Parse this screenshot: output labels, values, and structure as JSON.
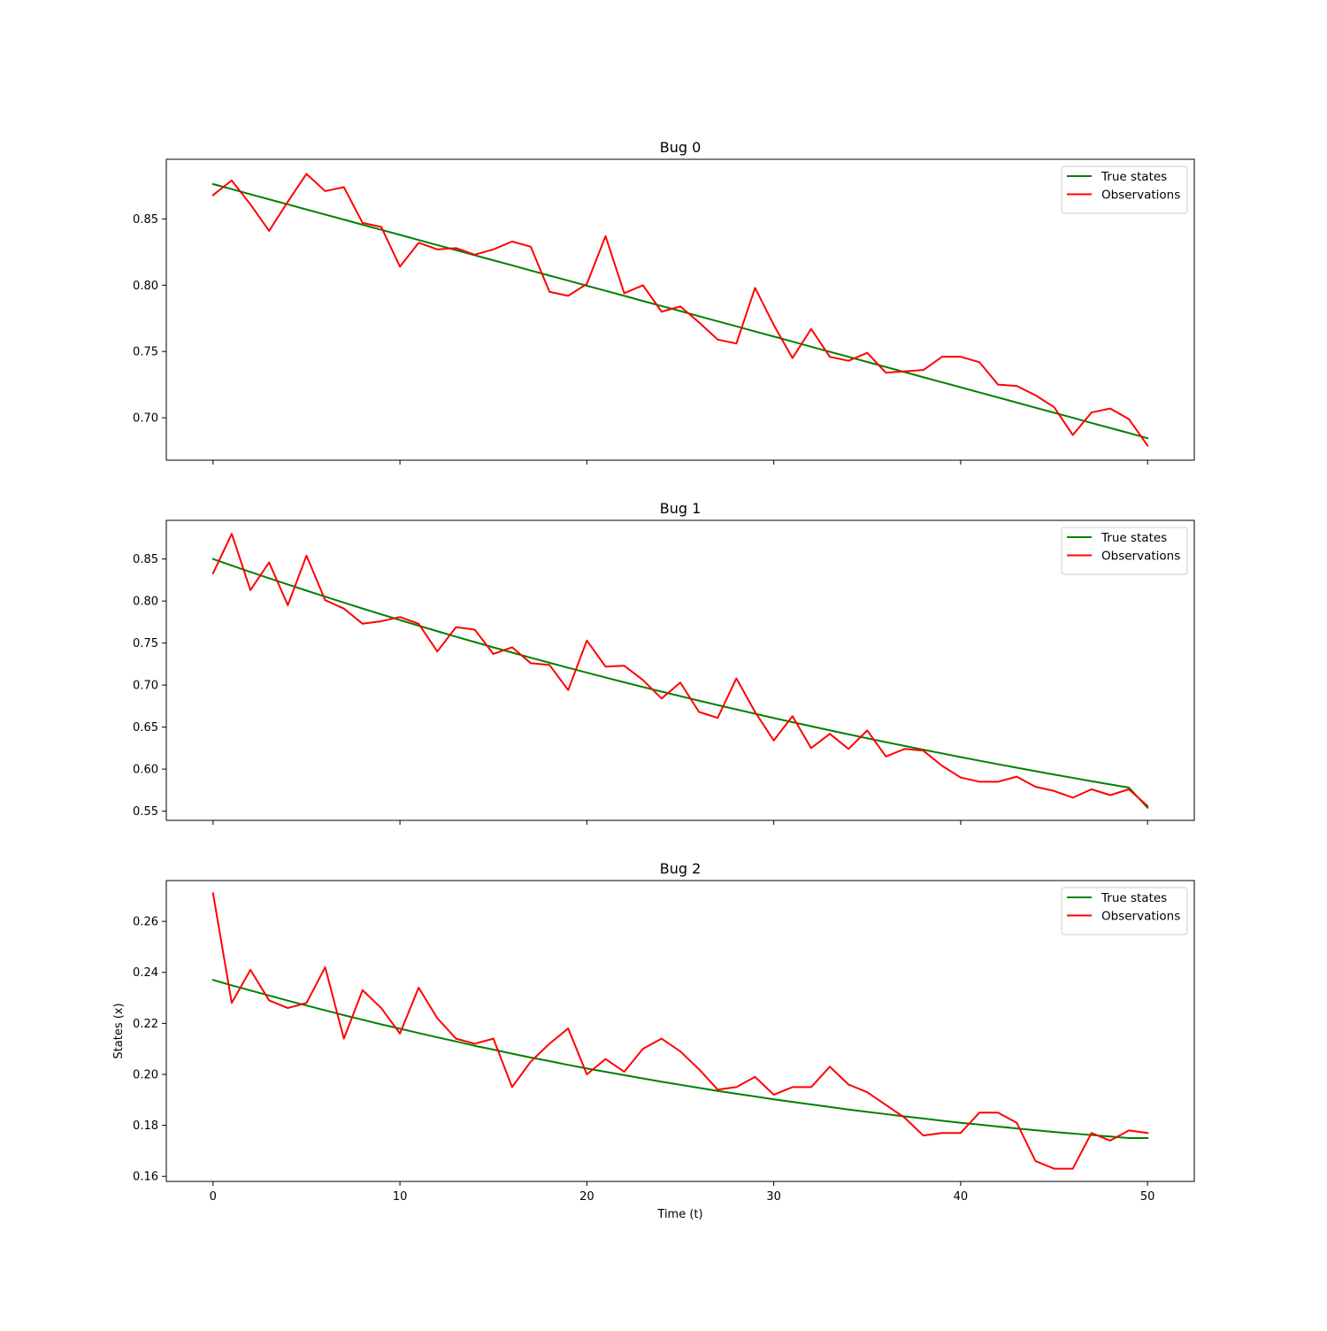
{
  "colors": {
    "true_states": "#008000",
    "observations": "#ff0000",
    "axes": "#000000",
    "legend_border": "#cccccc",
    "background": "#ffffff"
  },
  "chart_data": [
    {
      "type": "line",
      "title": "Bug 0",
      "xlabel": "",
      "ylabel": "",
      "xlim": [
        -2.5,
        52.5
      ],
      "ylim": [
        0.668,
        0.895
      ],
      "xticks": [
        0,
        10,
        20,
        30,
        40,
        50
      ],
      "xtick_labels_visible": false,
      "yticks": [
        0.7,
        0.75,
        0.8,
        0.85
      ],
      "ytick_labels": [
        "0.70",
        "0.75",
        "0.80",
        "0.85"
      ],
      "legend_position": "top-right",
      "x": [
        0,
        1,
        2,
        3,
        4,
        5,
        6,
        7,
        8,
        9,
        10,
        11,
        12,
        13,
        14,
        15,
        16,
        17,
        18,
        19,
        20,
        21,
        22,
        23,
        24,
        25,
        26,
        27,
        28,
        29,
        30,
        31,
        32,
        33,
        34,
        35,
        36,
        37,
        38,
        39,
        40,
        41,
        42,
        43,
        44,
        45,
        46,
        47,
        48,
        49,
        50
      ],
      "series": [
        {
          "name": "True states",
          "color": "#008000",
          "values": [
            0.8763,
            0.8725,
            0.8686,
            0.8648,
            0.861,
            0.8571,
            0.8533,
            0.8495,
            0.8456,
            0.8418,
            0.838,
            0.8341,
            0.8303,
            0.8265,
            0.8226,
            0.8188,
            0.815,
            0.8111,
            0.8073,
            0.8035,
            0.7996,
            0.7958,
            0.792,
            0.7881,
            0.7843,
            0.7805,
            0.7766,
            0.7728,
            0.769,
            0.7651,
            0.7613,
            0.7575,
            0.7536,
            0.7498,
            0.746,
            0.7421,
            0.7383,
            0.7345,
            0.7306,
            0.7268,
            0.723,
            0.7191,
            0.7153,
            0.7115,
            0.7076,
            0.7038,
            0.7,
            0.6961,
            0.6923,
            0.6885,
            0.6846
          ]
        },
        {
          "name": "Observations",
          "color": "#ff0000",
          "values": [
            0.868,
            0.879,
            0.861,
            0.841,
            0.863,
            0.884,
            0.871,
            0.874,
            0.847,
            0.844,
            0.814,
            0.832,
            0.827,
            0.828,
            0.823,
            0.827,
            0.833,
            0.829,
            0.795,
            0.792,
            0.801,
            0.837,
            0.794,
            0.8,
            0.78,
            0.784,
            0.772,
            0.759,
            0.756,
            0.798,
            0.77,
            0.745,
            0.767,
            0.746,
            0.743,
            0.749,
            0.734,
            0.735,
            0.736,
            0.746,
            0.746,
            0.742,
            0.725,
            0.724,
            0.717,
            0.708,
            0.687,
            0.704,
            0.707,
            0.699,
            0.679
          ]
        }
      ]
    },
    {
      "type": "line",
      "title": "Bug 1",
      "xlabel": "",
      "ylabel": "",
      "xlim": [
        -2.5,
        52.5
      ],
      "ylim": [
        0.539,
        0.896
      ],
      "xticks": [
        0,
        10,
        20,
        30,
        40,
        50
      ],
      "xtick_labels_visible": false,
      "yticks": [
        0.55,
        0.6,
        0.65,
        0.7,
        0.75,
        0.8,
        0.85
      ],
      "ytick_labels": [
        "0.55",
        "0.60",
        "0.65",
        "0.70",
        "0.75",
        "0.80",
        "0.85"
      ],
      "legend_position": "top-right",
      "x": [
        0,
        1,
        2,
        3,
        4,
        5,
        6,
        7,
        8,
        9,
        10,
        11,
        12,
        13,
        14,
        15,
        16,
        17,
        18,
        19,
        20,
        21,
        22,
        23,
        24,
        25,
        26,
        27,
        28,
        29,
        30,
        31,
        32,
        33,
        34,
        35,
        36,
        37,
        38,
        39,
        40,
        41,
        42,
        43,
        44,
        45,
        46,
        47,
        48,
        49,
        50
      ],
      "series": [
        {
          "name": "True states",
          "color": "#008000",
          "values": [
            0.85,
            0.8422,
            0.8346,
            0.8271,
            0.8197,
            0.8124,
            0.8052,
            0.7981,
            0.7911,
            0.7842,
            0.7774,
            0.7707,
            0.7641,
            0.7576,
            0.7512,
            0.7449,
            0.7387,
            0.7326,
            0.7266,
            0.7206,
            0.7148,
            0.709,
            0.7033,
            0.6977,
            0.6922,
            0.6868,
            0.6814,
            0.6762,
            0.671,
            0.6659,
            0.6608,
            0.6559,
            0.651,
            0.6462,
            0.6414,
            0.6367,
            0.6321,
            0.6276,
            0.6231,
            0.6187,
            0.6143,
            0.61,
            0.6058,
            0.6017,
            0.5976,
            0.5935,
            0.5896,
            0.5856,
            0.5818,
            0.578,
            0.554
          ]
        },
        {
          "name": "Observations",
          "color": "#ff0000",
          "values": [
            0.833,
            0.88,
            0.813,
            0.846,
            0.795,
            0.854,
            0.801,
            0.791,
            0.773,
            0.776,
            0.781,
            0.773,
            0.74,
            0.769,
            0.766,
            0.737,
            0.745,
            0.726,
            0.724,
            0.694,
            0.753,
            0.722,
            0.723,
            0.706,
            0.684,
            0.703,
            0.668,
            0.661,
            0.708,
            0.668,
            0.634,
            0.663,
            0.625,
            0.642,
            0.624,
            0.646,
            0.615,
            0.624,
            0.622,
            0.604,
            0.59,
            0.585,
            0.585,
            0.591,
            0.579,
            0.574,
            0.566,
            0.576,
            0.569,
            0.576,
            0.556
          ]
        }
      ]
    },
    {
      "type": "line",
      "title": "Bug 2",
      "xlabel": "Time (t)",
      "ylabel": "States (x)",
      "xlim": [
        -2.5,
        52.5
      ],
      "ylim": [
        0.158,
        0.276
      ],
      "xticks": [
        0,
        10,
        20,
        30,
        40,
        50
      ],
      "xtick_labels": [
        "0",
        "10",
        "20",
        "30",
        "40",
        "50"
      ],
      "xtick_labels_visible": true,
      "yticks": [
        0.16,
        0.18,
        0.2,
        0.22,
        0.24,
        0.26
      ],
      "ytick_labels": [
        "0.16",
        "0.18",
        "0.20",
        "0.22",
        "0.24",
        "0.26"
      ],
      "legend_position": "top-right",
      "x": [
        0,
        1,
        2,
        3,
        4,
        5,
        6,
        7,
        8,
        9,
        10,
        11,
        12,
        13,
        14,
        15,
        16,
        17,
        18,
        19,
        20,
        21,
        22,
        23,
        24,
        25,
        26,
        27,
        28,
        29,
        30,
        31,
        32,
        33,
        34,
        35,
        36,
        37,
        38,
        39,
        40,
        41,
        42,
        43,
        44,
        45,
        46,
        47,
        48,
        49,
        50
      ],
      "series": [
        {
          "name": "True states",
          "color": "#008000",
          "values": [
            0.237,
            0.2349,
            0.2329,
            0.2309,
            0.2289,
            0.227,
            0.2251,
            0.2232,
            0.2214,
            0.2196,
            0.2179,
            0.2162,
            0.2145,
            0.2129,
            0.2112,
            0.2097,
            0.2081,
            0.2066,
            0.2052,
            0.2037,
            0.2023,
            0.201,
            0.1997,
            0.1984,
            0.1971,
            0.1959,
            0.1947,
            0.1935,
            0.1924,
            0.1913,
            0.1902,
            0.1892,
            0.1882,
            0.1872,
            0.1862,
            0.1853,
            0.1844,
            0.1835,
            0.1827,
            0.1818,
            0.181,
            0.1803,
            0.1795,
            0.1788,
            0.1781,
            0.1774,
            0.1768,
            0.1762,
            0.1756,
            0.175,
            0.175
          ]
        },
        {
          "name": "Observations",
          "color": "#ff0000",
          "values": [
            0.271,
            0.228,
            0.241,
            0.229,
            0.226,
            0.228,
            0.242,
            0.214,
            0.233,
            0.226,
            0.216,
            0.234,
            0.222,
            0.214,
            0.212,
            0.214,
            0.195,
            0.205,
            0.212,
            0.218,
            0.2,
            0.206,
            0.201,
            0.21,
            0.214,
            0.209,
            0.202,
            0.194,
            0.195,
            0.199,
            0.192,
            0.195,
            0.195,
            0.203,
            0.196,
            0.193,
            0.188,
            0.183,
            0.176,
            0.177,
            0.177,
            0.185,
            0.185,
            0.181,
            0.166,
            0.163,
            0.163,
            0.177,
            0.174,
            0.178,
            0.177
          ]
        }
      ]
    }
  ]
}
